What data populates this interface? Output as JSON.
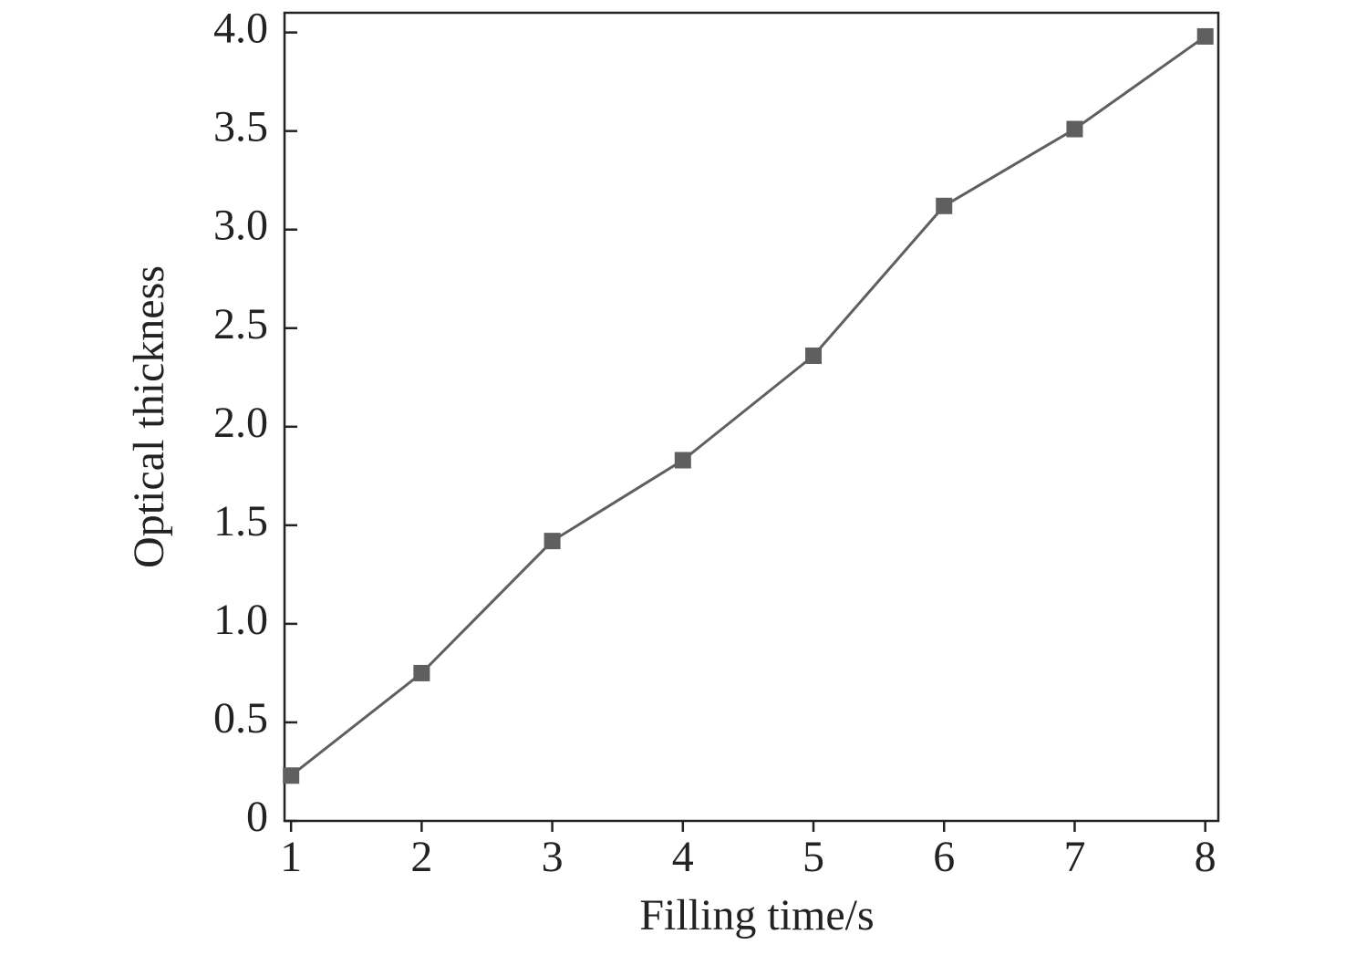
{
  "chart_data": {
    "type": "line",
    "x_label": "Filling time/s",
    "y_label": "Optical thickness",
    "x": [
      1,
      2,
      3,
      4,
      5,
      6,
      7,
      8
    ],
    "series": [
      {
        "color": "#5f5f5f",
        "values": [
          0.23,
          0.75,
          1.42,
          1.83,
          2.36,
          3.12,
          3.51,
          3.98
        ]
      }
    ],
    "xlim": [
      0.95,
      8.1
    ],
    "ylim": [
      0,
      4.1
    ],
    "xticks": [
      1,
      2,
      3,
      4,
      5,
      6,
      7,
      8
    ],
    "yticks": [
      0,
      0.5,
      {
        "value": 1,
        "label": "1.0"
      },
      1.5,
      {
        "value": 2,
        "label": "2.0"
      },
      2.5,
      {
        "value": 3,
        "label": "3.0"
      },
      3.5,
      {
        "value": 4,
        "label": "4.0"
      }
    ],
    "grid": false
  }
}
